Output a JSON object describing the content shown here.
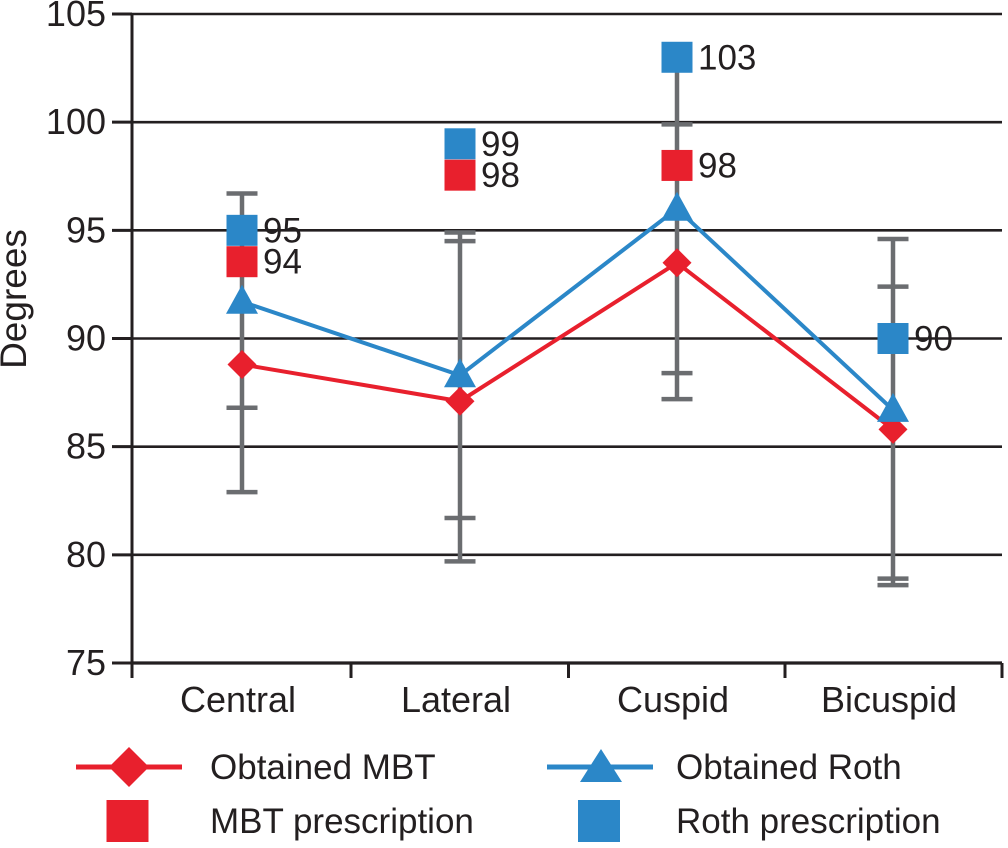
{
  "page": {
    "background": "#ffffff"
  },
  "colors": {
    "mbt_red": "#e8202d",
    "roth_blue": "#2b87c8",
    "error_gray": "#6b6d70",
    "ink": "#231f20"
  },
  "chart_data": {
    "type": "line",
    "title": "",
    "xlabel": "",
    "ylabel": "Degrees",
    "ylim": [
      75,
      105
    ],
    "yticks": [
      75,
      80,
      85,
      90,
      95,
      100,
      105
    ],
    "categories": [
      "Central",
      "Lateral",
      "Cuspid",
      "Bicuspid"
    ],
    "grid": true,
    "legend_position": "bottom",
    "series": [
      {
        "name": "Obtained MBT",
        "marker": "diamond",
        "color": "mbt_red",
        "values": [
          88.8,
          87.1,
          93.5,
          85.8
        ]
      },
      {
        "name": "Obtained Roth",
        "marker": "triangle",
        "color": "roth_blue",
        "values": [
          91.7,
          88.3,
          96.0,
          86.7
        ]
      }
    ],
    "prescriptions": [
      {
        "name": "MBT prescription",
        "marker": "square",
        "color": "mbt_red",
        "values": [
          94,
          98,
          98,
          null
        ],
        "display_values": [
          93.55,
          97.55,
          98,
          null
        ],
        "labels": [
          "94",
          "98",
          "98",
          ""
        ]
      },
      {
        "name": "Roth prescription",
        "marker": "square",
        "color": "roth_blue",
        "values": [
          95,
          99,
          103,
          90
        ],
        "display_values": [
          95,
          99,
          103,
          90
        ],
        "labels": [
          "95",
          "99",
          "103",
          "90"
        ]
      }
    ],
    "error_bars": [
      {
        "category": "Central",
        "top": 96.7,
        "bottom": 82.9,
        "caps": [
          96.7,
          86.8,
          82.9
        ]
      },
      {
        "category": "Lateral",
        "top": 94.9,
        "bottom": 79.7,
        "caps": [
          94.9,
          94.5,
          81.7,
          79.7
        ]
      },
      {
        "category": "Cuspid",
        "top": 103.0,
        "bottom": 87.2,
        "caps": [
          99.9,
          88.4,
          87.2
        ]
      },
      {
        "category": "Bicuspid",
        "top": 94.6,
        "bottom": 78.6,
        "caps": [
          94.6,
          92.4,
          78.9,
          78.6
        ]
      }
    ],
    "legend": [
      {
        "label": "Obtained MBT",
        "swatch": "diamond-line",
        "color": "mbt_red"
      },
      {
        "label": "MBT prescription",
        "swatch": "square",
        "color": "mbt_red"
      },
      {
        "label": "Obtained Roth",
        "swatch": "triangle-line",
        "color": "roth_blue"
      },
      {
        "label": "Roth prescription",
        "swatch": "square",
        "color": "roth_blue"
      }
    ]
  }
}
